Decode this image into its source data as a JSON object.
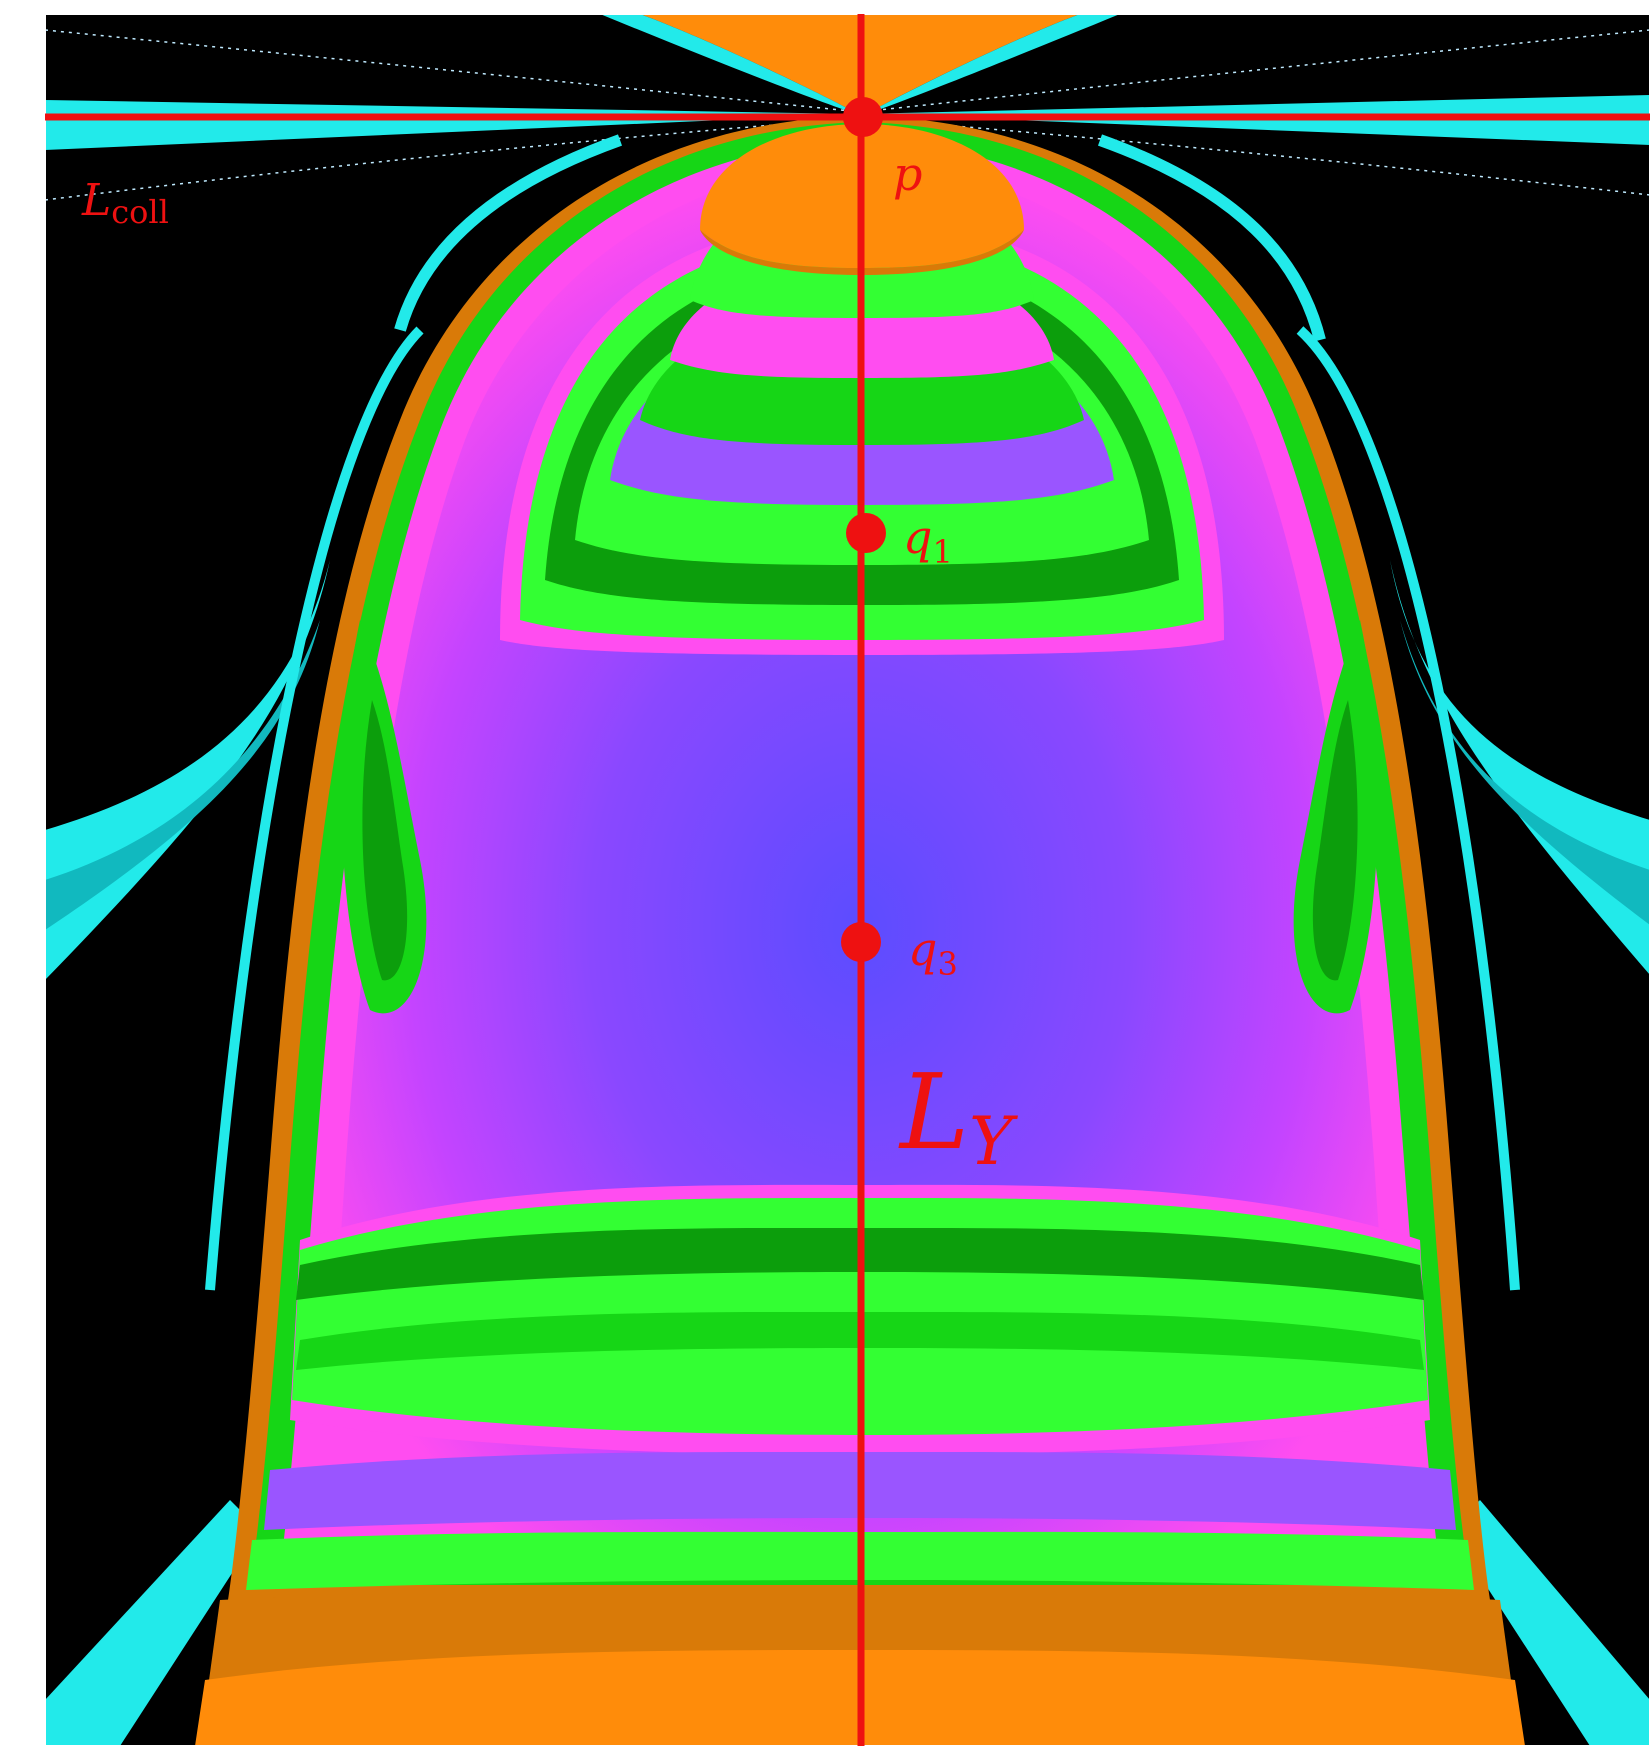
{
  "figure": {
    "colors": {
      "background": "#000000",
      "frame": "#ffffff",
      "orange": "#ff8c0a",
      "orange_dark": "#d97a08",
      "cyan": "#22eaea",
      "cyan_dark": "#11b9bf",
      "green": "#33ff33",
      "green_mid": "#16d616",
      "green_dark": "#0c9e0c",
      "magenta": "#ff4df0",
      "violet": "#bb44ff",
      "blue": "#6a4dff",
      "red": "#ee1111"
    },
    "labels": {
      "p": "p",
      "q1_base": "q",
      "q1_sub": "1",
      "q3_base": "q",
      "q3_sub": "3",
      "ly_base": "L",
      "ly_sub": "Y",
      "lcoll_base": "L",
      "lcoll_sub": "coll"
    }
  }
}
